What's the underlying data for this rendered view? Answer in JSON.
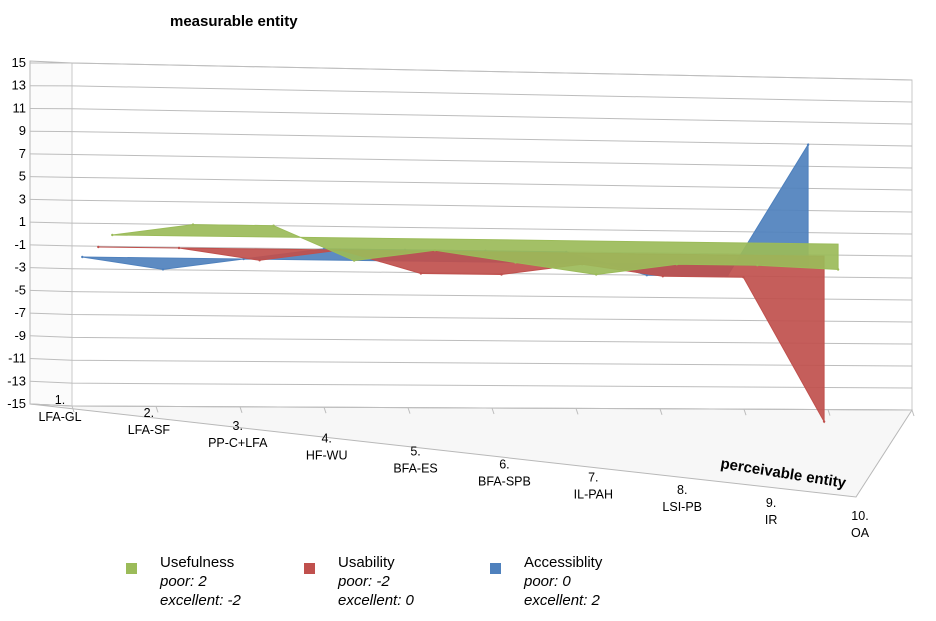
{
  "chart_data": {
    "type": "area",
    "view": "3d",
    "y_axis_title": "measurable entity",
    "x_axis_title": "perceivable entity",
    "ylim": [
      -15,
      15
    ],
    "yticks": [
      15,
      13,
      11,
      9,
      7,
      5,
      3,
      1,
      -1,
      -3,
      -5,
      -7,
      -9,
      -11,
      -13,
      -15
    ],
    "categories": [
      [
        "1.",
        "LFA-GL"
      ],
      [
        "2.",
        "LFA-SF"
      ],
      [
        "3.",
        "PP-C+LFA"
      ],
      [
        "4.",
        "HF-WU"
      ],
      [
        "5.",
        "BFA-ES"
      ],
      [
        "6.",
        "BFA-SPB"
      ],
      [
        "7.",
        "IL-PAH"
      ],
      [
        "8.",
        "LSI-PB"
      ],
      [
        "9.",
        "IR"
      ],
      [
        "10.",
        "OA"
      ]
    ],
    "grid": true,
    "legend_position": "bottom",
    "series": [
      {
        "name": "Usefulness",
        "color": "#9bbb59",
        "values": [
          0,
          1,
          1,
          -2,
          -1,
          -2,
          -3,
          -2,
          -2,
          -2.3
        ],
        "legend_notes": [
          "poor: 2",
          "excellent: -2"
        ]
      },
      {
        "name": "Usability",
        "color": "#c0504d",
        "values": [
          0,
          0,
          -1,
          0,
          -2,
          -2,
          -1,
          -2,
          -2,
          -15
        ],
        "legend_notes": [
          "poor: -2",
          "excellent: 0"
        ]
      },
      {
        "name": "Accessiblity",
        "color": "#4f81bd",
        "values": [
          0,
          -1,
          0,
          1,
          1,
          1,
          1,
          -1,
          -1,
          11
        ],
        "legend_notes": [
          "poor: 0",
          "excellent: 2"
        ]
      }
    ]
  }
}
